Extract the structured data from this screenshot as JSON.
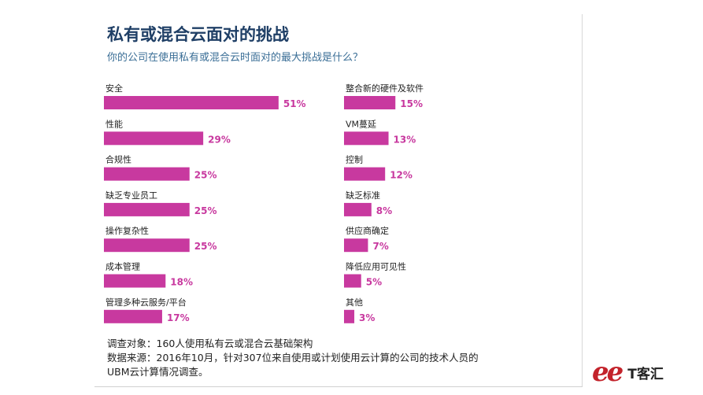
{
  "title": "私有或混合云面对的挑战",
  "subtitle": "你的公司在使用私有或混合云时面对的最大挑战是什么？",
  "chart_data": {
    "type": "bar",
    "orientation": "horizontal",
    "unit": "%",
    "groups": [
      {
        "categories": [
          "安全",
          "性能",
          "合规性",
          "缺乏专业员工",
          "操作复杂性",
          "成本管理",
          "管理多种云服务/平台"
        ],
        "values": [
          51,
          29,
          25,
          25,
          25,
          18,
          17
        ],
        "labels": [
          "51%",
          "29%",
          "25%",
          "25%",
          "25%",
          "18%",
          "17%"
        ]
      },
      {
        "categories": [
          "整合新的硬件及软件",
          "VM蔓延",
          "控制",
          "缺乏标准",
          "供应商确定",
          "降低应用可见性",
          "其他"
        ],
        "values": [
          15,
          13,
          12,
          8,
          7,
          5,
          3
        ],
        "labels": [
          "15%",
          "13%",
          "12%",
          "8%",
          "7%",
          "5%",
          "3%"
        ]
      }
    ],
    "bar_color": "#c8399f"
  },
  "footer": {
    "line1": "调查对象：160人使用私有云或混合云基础架构",
    "line2": "数据来源：2016年10月，针对307位来自使用或计划使用云计算的公司的技术人员的",
    "line3": "UBM云计算情况调查。"
  },
  "logo": {
    "text": "T客汇",
    "brand_color": "#c3232b"
  }
}
